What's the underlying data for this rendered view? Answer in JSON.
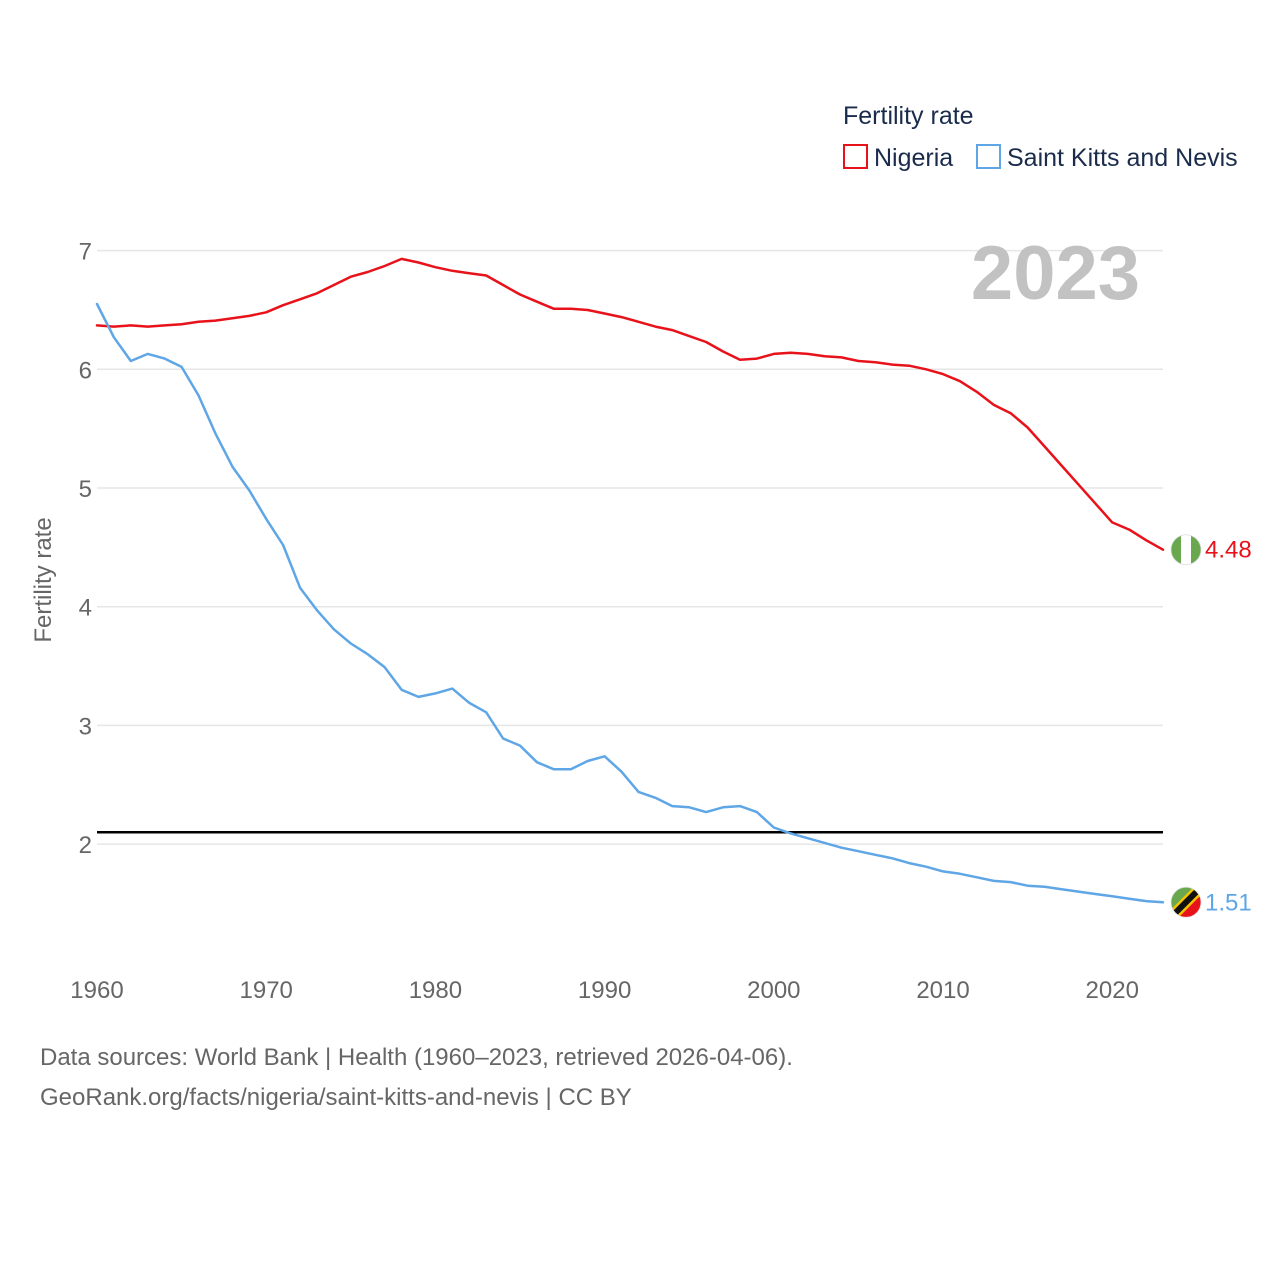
{
  "chart_data": {
    "type": "line",
    "title": "Fertility rate",
    "ylabel": "Fertility rate",
    "xlabel": "",
    "year_label": "2023",
    "xlim": [
      1960,
      2023
    ],
    "ylim": [
      1.15,
      7.3
    ],
    "x_ticks": [
      1960,
      1970,
      1980,
      1990,
      2000,
      2010,
      2020
    ],
    "y_ticks": [
      2,
      3,
      4,
      5,
      6,
      7
    ],
    "reference_line": {
      "value": 2.1,
      "color": "#000000"
    },
    "x": [
      1960,
      1961,
      1962,
      1963,
      1964,
      1965,
      1966,
      1967,
      1968,
      1969,
      1970,
      1971,
      1972,
      1973,
      1974,
      1975,
      1976,
      1977,
      1978,
      1979,
      1980,
      1981,
      1982,
      1983,
      1984,
      1985,
      1986,
      1987,
      1988,
      1989,
      1990,
      1991,
      1992,
      1993,
      1994,
      1995,
      1996,
      1997,
      1998,
      1999,
      2000,
      2001,
      2002,
      2003,
      2004,
      2005,
      2006,
      2007,
      2008,
      2009,
      2010,
      2011,
      2012,
      2013,
      2014,
      2015,
      2016,
      2017,
      2018,
      2019,
      2020,
      2021,
      2022,
      2023
    ],
    "series": [
      {
        "name": "Nigeria",
        "color": "#e8121a",
        "end_label": "4.48",
        "values": [
          6.37,
          6.36,
          6.37,
          6.36,
          6.37,
          6.38,
          6.4,
          6.41,
          6.43,
          6.45,
          6.48,
          6.54,
          6.59,
          6.64,
          6.71,
          6.78,
          6.82,
          6.87,
          6.93,
          6.9,
          6.86,
          6.83,
          6.81,
          6.79,
          6.71,
          6.63,
          6.57,
          6.51,
          6.51,
          6.5,
          6.47,
          6.44,
          6.4,
          6.36,
          6.33,
          6.28,
          6.23,
          6.15,
          6.08,
          6.09,
          6.13,
          6.14,
          6.13,
          6.11,
          6.1,
          6.07,
          6.06,
          6.04,
          6.03,
          6.0,
          5.96,
          5.9,
          5.81,
          5.7,
          5.63,
          5.51,
          5.35,
          5.19,
          5.03,
          4.87,
          4.71,
          4.65,
          4.56,
          4.48
        ]
      },
      {
        "name": "Saint Kitts and Nevis",
        "color": "#5fa6e6",
        "end_label": "1.51",
        "values": [
          6.55,
          6.27,
          6.07,
          6.13,
          6.09,
          6.02,
          5.78,
          5.46,
          5.18,
          4.98,
          4.74,
          4.52,
          4.16,
          3.97,
          3.81,
          3.69,
          3.6,
          3.49,
          3.3,
          3.24,
          3.27,
          3.31,
          3.19,
          3.11,
          2.89,
          2.83,
          2.69,
          2.63,
          2.63,
          2.7,
          2.74,
          2.61,
          2.44,
          2.39,
          2.32,
          2.31,
          2.27,
          2.31,
          2.32,
          2.27,
          2.14,
          2.09,
          2.05,
          2.01,
          1.97,
          1.94,
          1.91,
          1.88,
          1.84,
          1.81,
          1.77,
          1.75,
          1.72,
          1.69,
          1.68,
          1.65,
          1.64,
          1.62,
          1.6,
          1.58,
          1.56,
          1.54,
          1.52,
          1.51
        ]
      }
    ]
  },
  "footer": {
    "sources": "Data sources: World Bank | Health (1960–2023, retrieved 2026-04-06).",
    "credit": "GeoRank.org/facts/nigeria/saint-kitts-and-nevis | CC BY"
  },
  "flags": {
    "nigeria": {
      "green": "#6aa84f",
      "white": "#ffffff"
    },
    "saint_kitts": {
      "green": "#6aa84f",
      "red": "#e8121a",
      "black": "#111111",
      "yellow": "#f5c400"
    }
  }
}
